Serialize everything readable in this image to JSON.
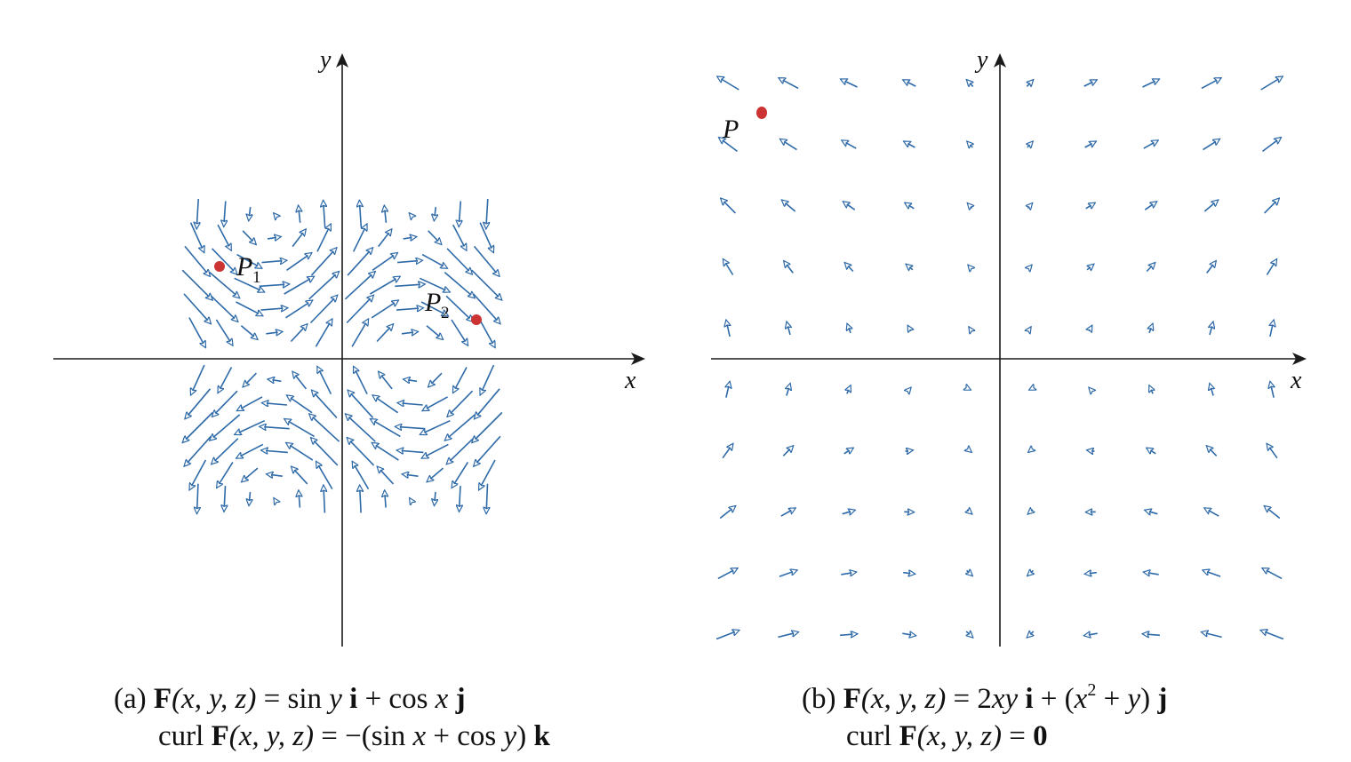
{
  "colors": {
    "arrow": "#2e6aa8",
    "axis": "#1a1a1a",
    "point": "#cc3333"
  },
  "panel_a": {
    "label": "(a)",
    "x_axis_label": "x",
    "y_axis_label": "y",
    "field_name": "F(x, y, z) = sin y i + cos x j",
    "curl_name": "curl F(x, y, z) = −(sin x + cos y) k",
    "points": [
      {
        "name": "P1",
        "letter": "P",
        "sub": "1"
      },
      {
        "name": "P2",
        "letter": "P",
        "sub": "2"
      }
    ]
  },
  "panel_b": {
    "label": "(b)",
    "x_axis_label": "x",
    "y_axis_label": "y",
    "field_name": "F(x, y, z) = 2xy i + (x² + y) j",
    "curl_name": "curl F(x, y, z) = 0",
    "points": [
      {
        "name": "P",
        "letter": "P"
      }
    ]
  },
  "caption_a": {
    "line1": {
      "prefix": "(a) ",
      "F": "F",
      "args": "(x, y, z)",
      "eq": " = sin ",
      "y": "y",
      "i": " i",
      "plus": " + cos ",
      "x": "x",
      "j": " j"
    },
    "line2": {
      "curl": "curl ",
      "F": "F",
      "args": "(x, y, z)",
      "eq": " = −(sin ",
      "x": "x",
      "plus": " + cos ",
      "y": "y",
      "close": ") ",
      "k": "k"
    }
  },
  "caption_b": {
    "line1": {
      "prefix": "(b) ",
      "F": "F",
      "args": "(x, y, z)",
      "eq": " = 2",
      "xy": "xy",
      "i": " i",
      "plus": " + (",
      "x": "x",
      "exp": "2",
      "plusy": " + ",
      "y": "y",
      "close": ") ",
      "j": "j"
    },
    "line2": {
      "curl": "curl ",
      "F": "F",
      "args": "(x, y, z)",
      "eq": " = ",
      "zero": "0"
    }
  }
}
